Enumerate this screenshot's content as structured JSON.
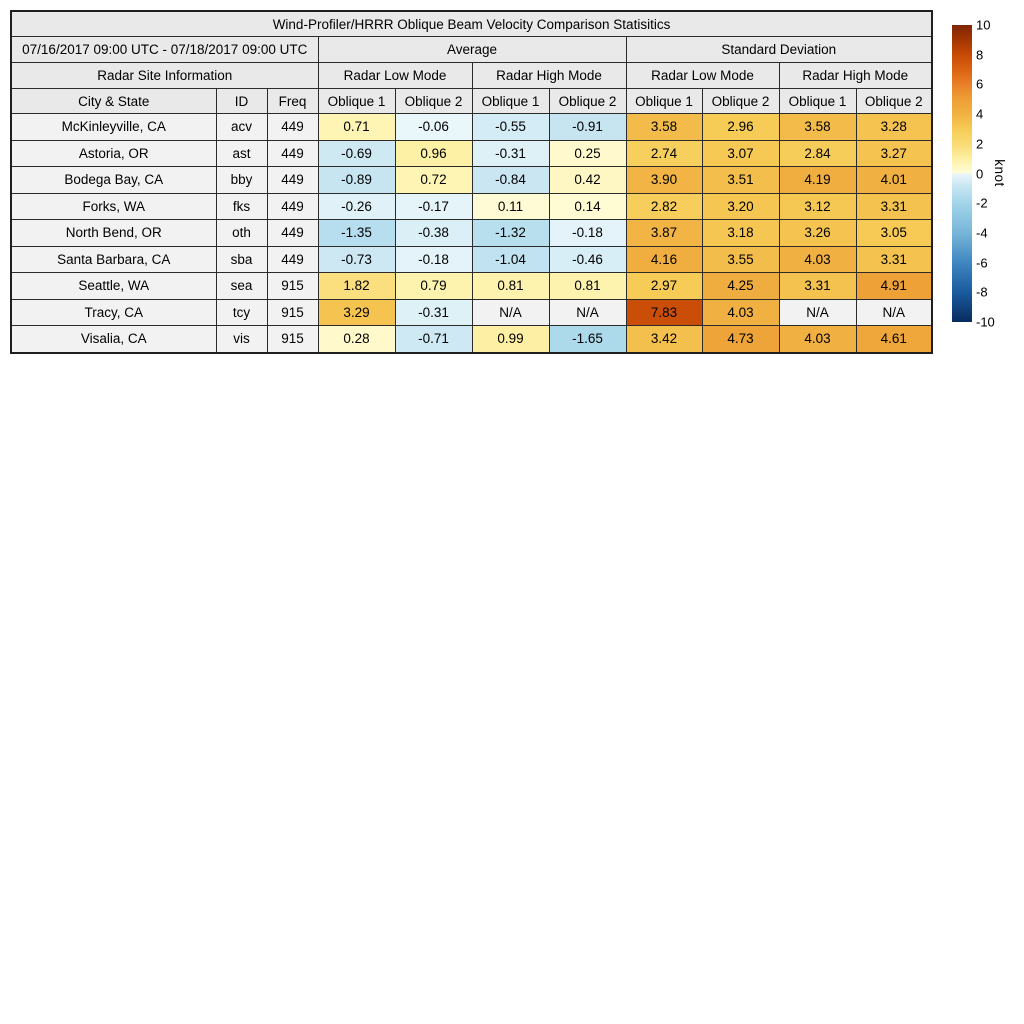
{
  "chart_data": {
    "type": "table",
    "title": "Wind-Profiler/HRRR Oblique Beam Velocity Comparison Statisitics",
    "period": "07/16/2017 09:00 UTC - 07/18/2017 09:00 UTC",
    "site_info_header": "Radar Site Information",
    "group_headers": [
      "Average",
      "Standard Deviation"
    ],
    "mode_headers": [
      "Radar Low Mode",
      "Radar High Mode",
      "Radar Low Mode",
      "Radar High Mode"
    ],
    "column_headers": [
      "City & State",
      "ID",
      "Freq",
      "Oblique 1",
      "Oblique 2",
      "Oblique 1",
      "Oblique 2",
      "Oblique 1",
      "Oblique 2",
      "Oblique 1",
      "Oblique 2"
    ],
    "na_label": "N/A",
    "rows": [
      {
        "city_state": "McKinleyville, CA",
        "id": "acv",
        "freq": "449",
        "values": [
          0.71,
          -0.06,
          -0.55,
          -0.91,
          3.58,
          2.96,
          3.58,
          3.28
        ]
      },
      {
        "city_state": "Astoria, OR",
        "id": "ast",
        "freq": "449",
        "values": [
          -0.69,
          0.96,
          -0.31,
          0.25,
          2.74,
          3.07,
          2.84,
          3.27
        ]
      },
      {
        "city_state": "Bodega Bay, CA",
        "id": "bby",
        "freq": "449",
        "values": [
          -0.89,
          0.72,
          -0.84,
          0.42,
          3.9,
          3.51,
          4.19,
          4.01
        ]
      },
      {
        "city_state": "Forks, WA",
        "id": "fks",
        "freq": "449",
        "values": [
          -0.26,
          -0.17,
          0.11,
          0.14,
          2.82,
          3.2,
          3.12,
          3.31
        ]
      },
      {
        "city_state": "North Bend, OR",
        "id": "oth",
        "freq": "449",
        "values": [
          -1.35,
          -0.38,
          -1.32,
          -0.18,
          3.87,
          3.18,
          3.26,
          3.05
        ]
      },
      {
        "city_state": "Santa Barbara, CA",
        "id": "sba",
        "freq": "449",
        "values": [
          -0.73,
          -0.18,
          -1.04,
          -0.46,
          4.16,
          3.55,
          4.03,
          3.31
        ]
      },
      {
        "city_state": "Seattle, WA",
        "id": "sea",
        "freq": "915",
        "values": [
          1.82,
          0.79,
          0.81,
          0.81,
          2.97,
          4.25,
          3.31,
          4.91
        ]
      },
      {
        "city_state": "Tracy, CA",
        "id": "tcy",
        "freq": "915",
        "values": [
          3.29,
          -0.31,
          null,
          null,
          7.83,
          4.03,
          null,
          null
        ]
      },
      {
        "city_state": "Visalia, CA",
        "id": "vis",
        "freq": "915",
        "values": [
          0.28,
          -0.71,
          0.99,
          -1.65,
          3.42,
          4.73,
          4.03,
          4.61
        ]
      }
    ],
    "colorbar": {
      "label": "knot",
      "min": -10,
      "max": 10,
      "ticks": [
        10,
        8,
        6,
        4,
        2,
        0,
        -2,
        -4,
        -6,
        -8,
        -10
      ],
      "colormap_anchors": [
        {
          "value": -10,
          "color": "#082c5e"
        },
        {
          "value": -8,
          "color": "#1a5a9e"
        },
        {
          "value": -6,
          "color": "#3f87c0"
        },
        {
          "value": -4,
          "color": "#77b5d9"
        },
        {
          "value": -2,
          "color": "#a2d5e9"
        },
        {
          "value": -1,
          "color": "#c2e3f0"
        },
        {
          "value": -0.05,
          "color": "#e9f6fa"
        },
        {
          "value": 0.05,
          "color": "#fffcd8"
        },
        {
          "value": 1,
          "color": "#fdf0a4"
        },
        {
          "value": 2,
          "color": "#fada74"
        },
        {
          "value": 3,
          "color": "#f6cb55"
        },
        {
          "value": 4,
          "color": "#f1b142"
        },
        {
          "value": 5,
          "color": "#ee9f36"
        },
        {
          "value": 6,
          "color": "#e98029"
        },
        {
          "value": 7,
          "color": "#da6211"
        },
        {
          "value": 8,
          "color": "#c74a05"
        },
        {
          "value": 9,
          "color": "#a33502"
        },
        {
          "value": 10,
          "color": "#7f2704"
        }
      ]
    }
  }
}
